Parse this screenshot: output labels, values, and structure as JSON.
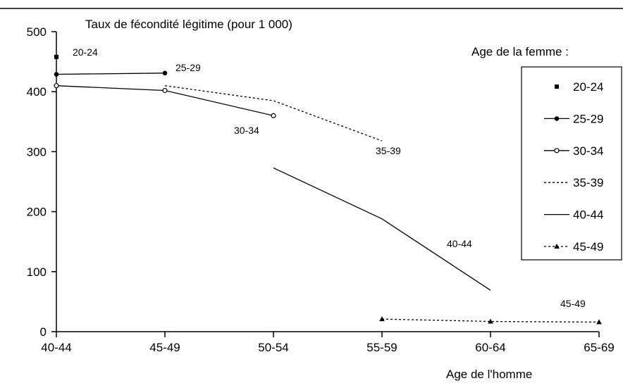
{
  "chart_data": {
    "type": "line",
    "title": "Taux de fécondité légitime (pour 1 000)",
    "xlabel": "Age de l'homme",
    "ylabel": "",
    "categories": [
      "40-44",
      "45-49",
      "50-54",
      "55-59",
      "60-64",
      "65-69"
    ],
    "ylim": [
      0,
      500
    ],
    "yticks": [
      "0",
      "100",
      "200",
      "300",
      "400",
      "500"
    ],
    "legend_title": "Age de la femme :",
    "legend_position": "right",
    "grid": false,
    "series": [
      {
        "name": "20-24",
        "label": "20-24",
        "marker": "square",
        "line": "none",
        "values": [
          458,
          null,
          null,
          null,
          null,
          null
        ]
      },
      {
        "name": "25-29",
        "label": "25-29",
        "marker": "filled-circle",
        "line": "solid",
        "values": [
          429,
          431,
          null,
          null,
          null,
          null
        ]
      },
      {
        "name": "30-34",
        "label": "30-34",
        "marker": "open-circle",
        "line": "solid",
        "values": [
          410,
          402,
          360,
          null,
          null,
          null
        ]
      },
      {
        "name": "35-39",
        "label": "35-39",
        "marker": "none",
        "line": "dotted",
        "values": [
          null,
          410,
          385,
          318,
          null,
          null
        ]
      },
      {
        "name": "40-44",
        "label": "40-44",
        "marker": "none",
        "line": "solid",
        "values": [
          null,
          null,
          273,
          188,
          69,
          null
        ]
      },
      {
        "name": "45-49",
        "label": "45-49",
        "marker": "filled-triangle",
        "line": "dotted",
        "values": [
          null,
          null,
          null,
          21,
          17,
          16
        ]
      }
    ]
  }
}
